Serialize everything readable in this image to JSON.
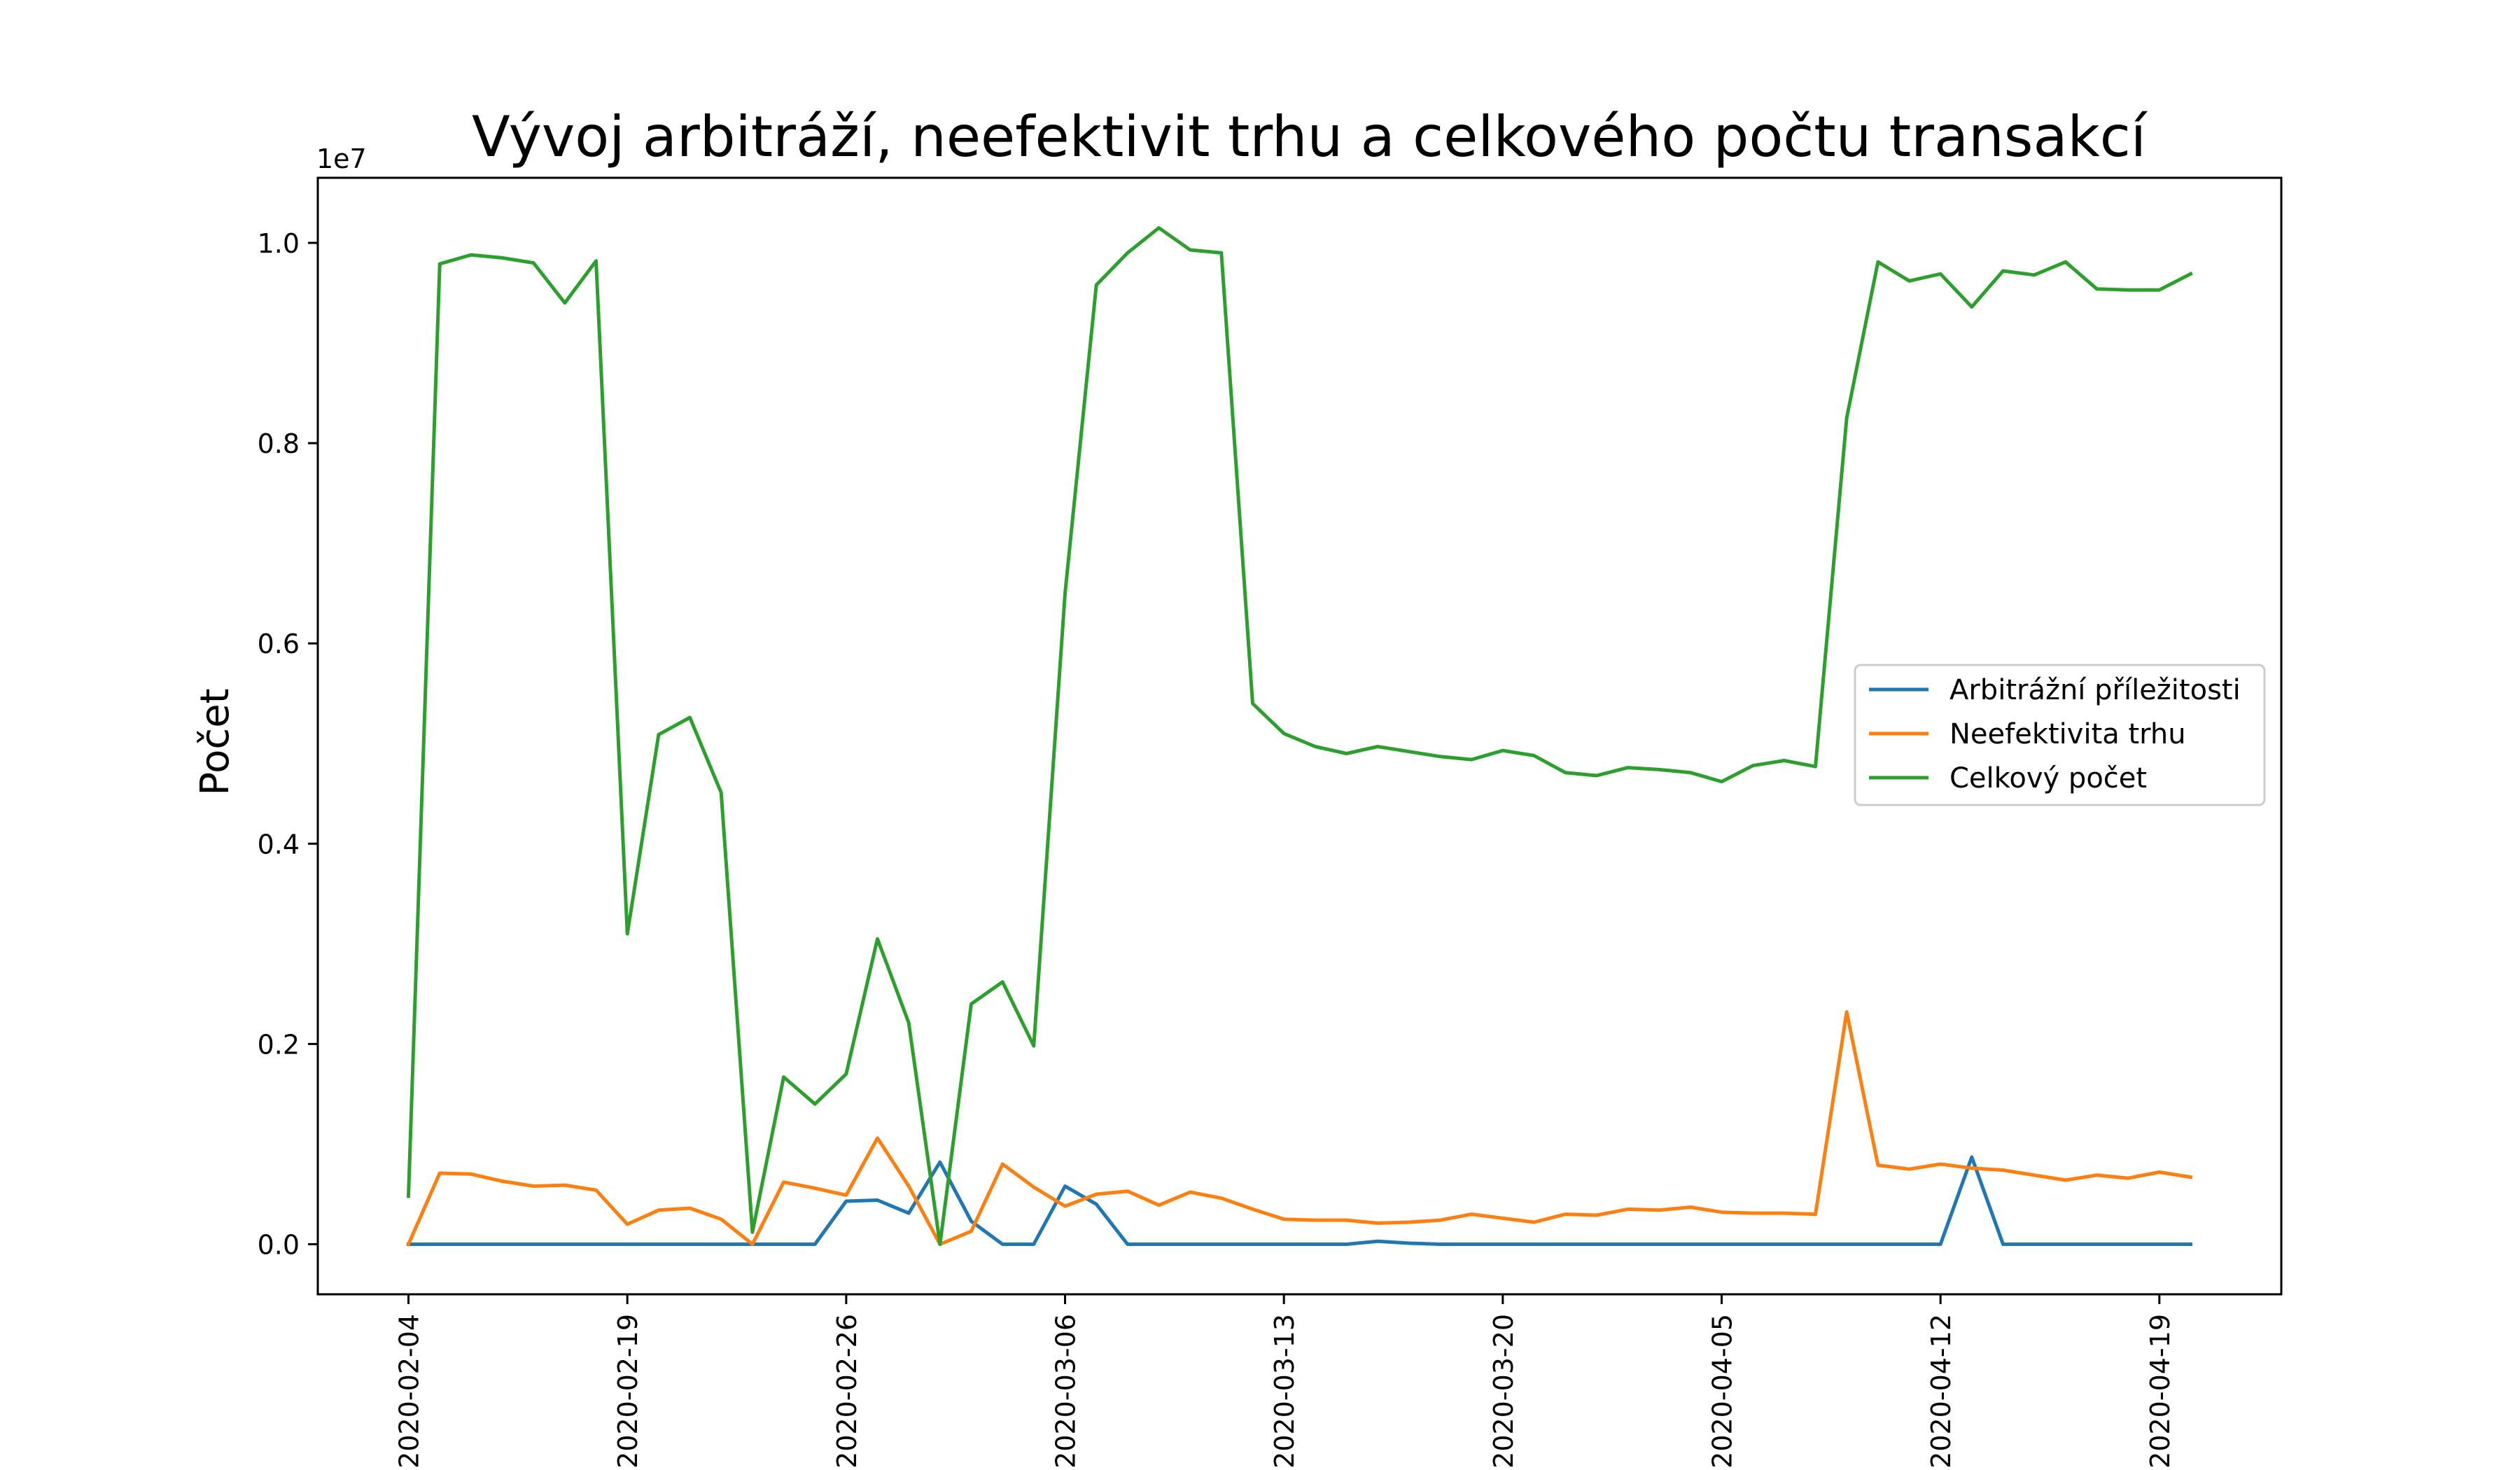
{
  "chart_data": {
    "type": "line",
    "title": "Vývoj arbitráží, neefektivit trhu a celkového počtu transakcí",
    "ylabel": "Počet",
    "xlabel": "",
    "y_multiplier_label": "1e7",
    "ylim": [
      -0.05,
      1.065
    ],
    "yticks": [
      0.0,
      0.2,
      0.4,
      0.6,
      0.8,
      1.0
    ],
    "ytick_labels": [
      "0.0",
      "0.2",
      "0.4",
      "0.6",
      "0.8",
      "1.0"
    ],
    "xlim": [
      -2.9,
      59.9
    ],
    "xticks": [
      0,
      7,
      14,
      21,
      28,
      35,
      42,
      49,
      56
    ],
    "xtick_labels": [
      "2020-02-04",
      "2020-02-19",
      "2020-02-26",
      "2020-03-06",
      "2020-03-13",
      "2020-03-20",
      "2020-04-05",
      "2020-04-12",
      "2020-04-19"
    ],
    "grid": false,
    "legend_position": "center-right",
    "x_index": [
      0,
      1,
      2,
      3,
      4,
      5,
      6,
      7,
      8,
      9,
      10,
      11,
      12,
      13,
      14,
      15,
      16,
      17,
      18,
      19,
      20,
      21,
      22,
      23,
      24,
      25,
      26,
      27,
      28,
      29,
      30,
      31,
      32,
      33,
      34,
      35,
      36,
      37,
      38,
      39,
      40,
      41,
      42,
      43,
      44,
      45,
      46,
      47,
      48,
      49,
      50,
      51,
      52,
      53,
      54,
      55,
      56,
      57
    ],
    "series": [
      {
        "name": "Arbitrážní příležitosti",
        "color": "#1f77b4",
        "values": [
          0.0,
          0.0,
          0.0,
          0.0,
          0.0,
          0.0,
          0.0,
          0.0,
          0.0,
          0.0,
          0.0,
          0.0,
          0.0,
          0.0,
          0.043,
          0.044,
          0.031,
          0.082,
          0.023,
          0.0,
          0.0,
          0.058,
          0.04,
          0.0,
          0.0,
          0.0,
          0.0,
          0.0,
          0.0,
          0.0,
          0.0,
          0.003,
          0.001,
          0.0,
          0.0,
          0.0,
          0.0,
          0.0,
          0.0,
          0.0,
          0.0,
          0.0,
          0.0,
          0.0,
          0.0,
          0.0,
          0.0,
          0.0,
          0.0,
          0.0,
          0.087,
          0.0,
          0.0,
          0.0,
          0.0,
          0.0,
          0.0,
          0.0
        ]
      },
      {
        "name": "Neefektivita trhu",
        "color": "#ff7f0e",
        "values": [
          0.0,
          0.071,
          0.07,
          0.063,
          0.058,
          0.059,
          0.054,
          0.02,
          0.034,
          0.036,
          0.025,
          0.0,
          0.062,
          0.056,
          0.049,
          0.106,
          0.058,
          0.0,
          0.013,
          0.08,
          0.057,
          0.038,
          0.05,
          0.053,
          0.039,
          0.052,
          0.046,
          0.035,
          0.025,
          0.024,
          0.024,
          0.021,
          0.022,
          0.024,
          0.03,
          0.026,
          0.022,
          0.03,
          0.029,
          0.035,
          0.034,
          0.037,
          0.032,
          0.031,
          0.031,
          0.03,
          0.232,
          0.079,
          0.075,
          0.08,
          0.076,
          0.074,
          0.069,
          0.064,
          0.069,
          0.066,
          0.072,
          0.067
        ]
      },
      {
        "name": "Celkový počet",
        "color": "#2ca02c",
        "values": [
          0.048,
          0.979,
          0.988,
          0.985,
          0.98,
          0.94,
          0.982,
          0.31,
          0.509,
          0.526,
          0.451,
          0.012,
          0.167,
          0.14,
          0.17,
          0.305,
          0.221,
          0.0,
          0.24,
          0.262,
          0.198,
          0.65,
          0.958,
          0.99,
          1.015,
          0.993,
          0.99,
          0.54,
          0.51,
          0.497,
          0.49,
          0.497,
          0.492,
          0.487,
          0.484,
          0.493,
          0.488,
          0.471,
          0.468,
          0.476,
          0.474,
          0.471,
          0.462,
          0.478,
          0.483,
          0.477,
          0.825,
          0.981,
          0.962,
          0.969,
          0.936,
          0.972,
          0.968,
          0.981,
          0.954,
          0.953,
          0.953,
          0.969
        ]
      }
    ]
  }
}
